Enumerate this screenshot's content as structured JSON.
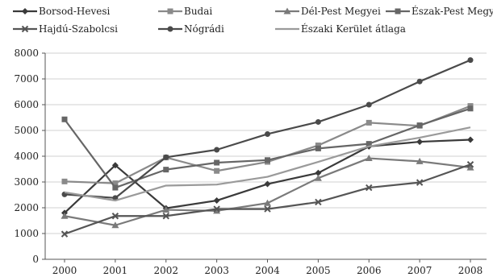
{
  "chart_data": {
    "type": "line",
    "title": "",
    "xlabel": "",
    "ylabel": "",
    "x": [
      "2000",
      "2001",
      "2002",
      "2003",
      "2004",
      "2005",
      "2006",
      "2007",
      "2008"
    ],
    "ylim": [
      0,
      8000
    ],
    "yticks": [
      0,
      1000,
      2000,
      3000,
      4000,
      5000,
      6000,
      7000,
      8000
    ],
    "grid": "horizontal",
    "legend_position": "top",
    "series": [
      {
        "name": "Borsod-Hevesi",
        "color": "#3a3a3a",
        "marker": "diamond",
        "values": [
          1800,
          3650,
          1980,
          2280,
          2920,
          3350,
          4380,
          4560,
          4640
        ]
      },
      {
        "name": "Budai",
        "color": "#8a8a8a",
        "marker": "square",
        "values": [
          3020,
          2950,
          3950,
          3430,
          3780,
          4420,
          5300,
          5180,
          5950
        ]
      },
      {
        "name": "Dél-Pest Megyei",
        "color": "#7a7a7a",
        "marker": "triangle",
        "values": [
          1680,
          1320,
          1920,
          1880,
          2180,
          3150,
          3920,
          3800,
          3560
        ]
      },
      {
        "name": "Észak-Pest Megyei",
        "color": "#666666",
        "marker": "square",
        "values": [
          5430,
          2780,
          3480,
          3750,
          3850,
          4300,
          4480,
          5200,
          5850
        ]
      },
      {
        "name": "Hajdú-Szabolcsi",
        "color": "#555555",
        "marker": "x",
        "values": [
          980,
          1680,
          1680,
          1950,
          1950,
          2220,
          2780,
          2980,
          3680
        ]
      },
      {
        "name": "Nógrádi",
        "color": "#4a4a4a",
        "marker": "circle",
        "values": [
          2520,
          2380,
          3960,
          4250,
          4860,
          5330,
          6000,
          6900,
          7730
        ]
      },
      {
        "name": "Északi Kerület átlaga",
        "color": "#9a9a9a",
        "marker": "none",
        "values": [
          2600,
          2280,
          2860,
          2900,
          3200,
          3780,
          4380,
          4720,
          5120
        ]
      }
    ]
  }
}
